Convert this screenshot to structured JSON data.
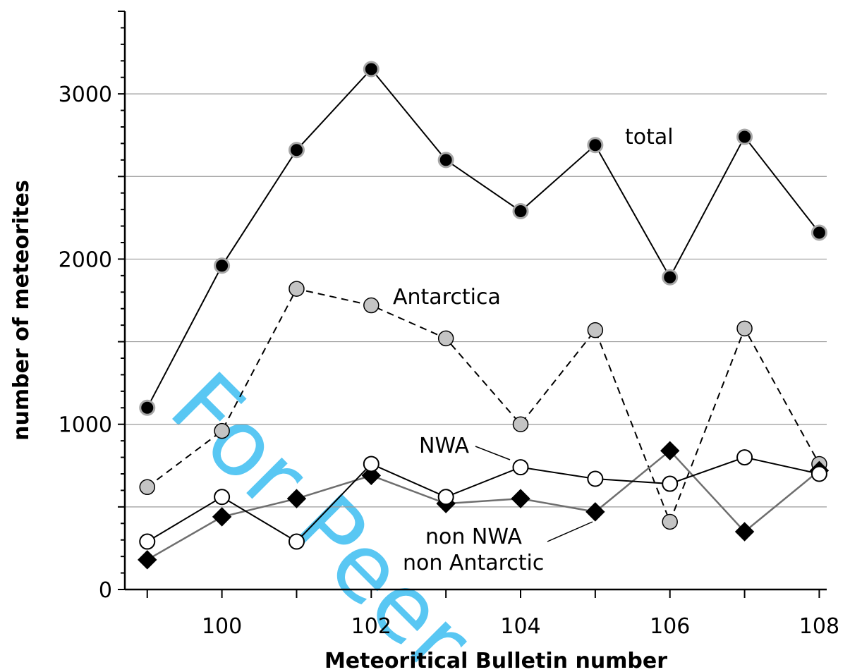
{
  "chart_data": {
    "type": "line",
    "xlabel": "Meteoritical Bulletin number",
    "ylabel": "number of meteorites",
    "xlim": [
      98.7,
      108.1
    ],
    "ylim": [
      0,
      3500
    ],
    "x_ticks": [
      100,
      102,
      104,
      106,
      108
    ],
    "y_ticks": [
      0,
      1000,
      2000,
      3000
    ],
    "y_gridlines": [
      500,
      1000,
      1500,
      2000,
      2500,
      3000
    ],
    "grid": "horizontal",
    "x": [
      99,
      100,
      101,
      102,
      103,
      104,
      105,
      106,
      107,
      108
    ],
    "series": [
      {
        "name": "total",
        "style": "solid",
        "marker": "black-dot-gray-ring",
        "values": [
          1100,
          1960,
          2660,
          3150,
          2600,
          2290,
          2690,
          1890,
          2740,
          2160
        ]
      },
      {
        "name": "Antarctica",
        "style": "dashed",
        "marker": "gray-circle",
        "values": [
          620,
          960,
          1820,
          1720,
          1520,
          1000,
          1570,
          410,
          1580,
          760
        ]
      },
      {
        "name": "NWA",
        "style": "solid",
        "marker": "open-circle",
        "values": [
          290,
          560,
          290,
          760,
          560,
          740,
          670,
          640,
          800,
          700
        ]
      },
      {
        "name": "non NWA non Antarctic",
        "style": "solid-gray",
        "marker": "black-diamond",
        "values": [
          180,
          440,
          550,
          690,
          520,
          550,
          470,
          840,
          350,
          720
        ]
      }
    ],
    "annotations": {
      "total": "total",
      "antarctica": "Antarctica",
      "nwa": "NWA",
      "non_nwa_line1": "non NWA",
      "non_nwa_line2": "non Antarctic"
    },
    "watermark": "For Peer"
  }
}
